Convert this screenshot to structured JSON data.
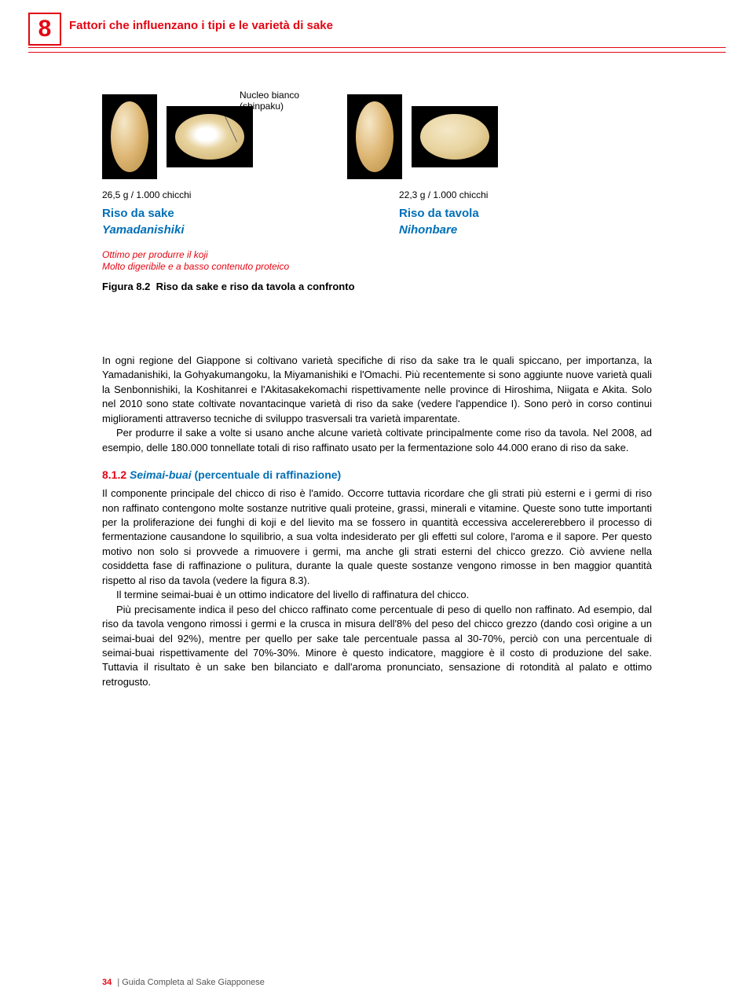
{
  "header": {
    "chapter_number": "8",
    "title": "Fattori che influenzano i tipi e le varietà di sake",
    "rule_color": "#e30613"
  },
  "figure": {
    "shinpaku_label_line1": "Nucleo bianco",
    "shinpaku_label_line2": "(shinpaku)",
    "left": {
      "weight": "26,5 g / 1.000 chicchi",
      "type": "Riso da sake",
      "variety": "Yamadanishiki"
    },
    "right": {
      "weight": "22,3 g / 1.000 chicchi",
      "type": "Riso da tavola",
      "variety": "Nihonbare"
    },
    "koji_note_1": "Ottimo per produrre il koji",
    "koji_note_2": "Molto digeribile e a basso contenuto proteico",
    "caption_prefix": "Figura 8.2",
    "caption_text": "Riso da sake e riso da tavola a confronto"
  },
  "body": {
    "p1": "In ogni regione del Giappone si coltivano varietà specifiche di riso da sake tra le quali spiccano, per importanza, la Yamadanishiki, la Gohyakumangoku, la Miyamanishiki e l'Omachi. Più recentemente si sono aggiunte nuove varietà quali la Senbonnishiki, la Koshitanrei e l'Akitasakekomachi rispettivamente nelle province di Hiroshima, Niigata e Akita. Solo nel 2010 sono state coltivate novantacinque varietà di riso da sake (vedere l'appendice I). Sono però in corso continui miglioramenti attraverso tecniche di sviluppo trasversali tra varietà imparentate.",
    "p2": "Per produrre il sake a volte si usano anche alcune varietà coltivate principalmente come riso da tavola. Nel 2008, ad esempio, delle 180.000 tonnellate totali di riso raffinato usato per la fermentazione solo 44.000 erano di riso da sake.",
    "section_num": "8.1.2",
    "section_title": "Seimai-buai",
    "section_sub": "(percentuale di raffinazione)",
    "p3": "Il componente principale del chicco di riso è l'amido. Occorre tuttavia ricordare che gli strati più esterni e i germi di riso non raffinato contengono molte sostanze nutritive quali proteine, grassi, minerali e vitamine. Queste sono tutte importanti per la proliferazione dei funghi di koji e del lievito ma se fossero in quantità eccessiva accelererebbero il processo di fermentazione causandone lo squilibrio, a sua volta indesiderato per gli effetti sul colore, l'aroma e il sapore. Per questo motivo non solo si provvede a rimuovere i germi, ma anche gli strati esterni del chicco grezzo. Ciò avviene nella cosiddetta fase di raffinazione o pulitura, durante la quale queste sostanze vengono rimosse in ben maggior quantità rispetto al riso da tavola (vedere la figura 8.3).",
    "p4": "Il termine seimai-buai è un ottimo indicatore del livello di raffinatura del chicco.",
    "p5": "Più precisamente indica il peso del chicco raffinato come percentuale di peso di quello non raffinato. Ad esempio, dal riso da tavola vengono rimossi i germi e la crusca in misura dell'8% del peso del chicco grezzo (dando così origine a un seimai-buai del 92%), mentre per quello per sake tale percentuale passa al 30-70%, perciò con una percentuale di seimai-buai rispettivamente del 70%-30%. Minore è questo indicatore, maggiore è il costo di produzione del sake. Tuttavia il risultato è un sake ben bilanciato e dall'aroma pronunciato, sensazione di rotondità al palato e ottimo retrogusto."
  },
  "footer": {
    "page": "34",
    "label": "Guida Completa al Sake Giapponese"
  },
  "colors": {
    "accent_red": "#e30613",
    "accent_blue": "#006fb7",
    "text": "#000000",
    "background": "#ffffff"
  }
}
